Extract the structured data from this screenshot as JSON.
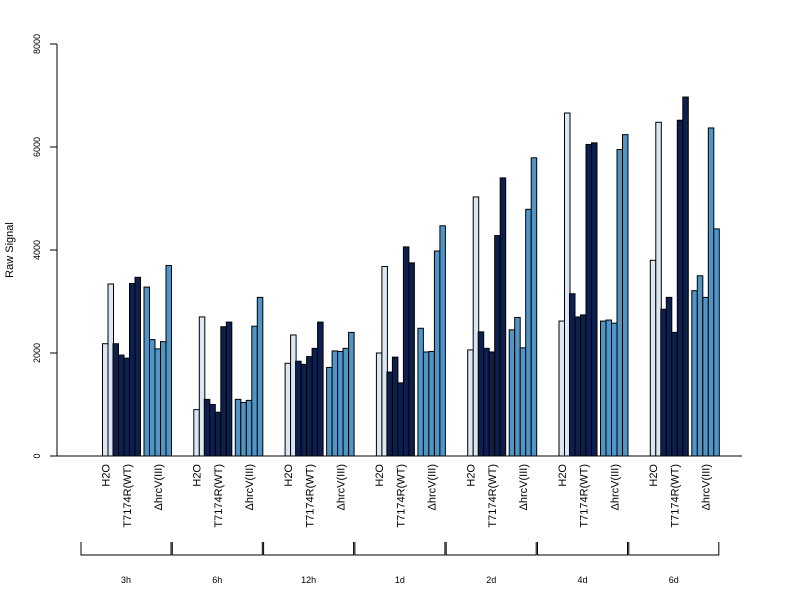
{
  "chart_data": {
    "type": "bar",
    "ylabel": "Raw Signal",
    "ylim": [
      0,
      8000
    ],
    "yticks": [
      0,
      2000,
      4000,
      6000,
      8000
    ],
    "grid": false,
    "legend": "none",
    "treatments": [
      "H2O",
      "T7174R(WT)",
      "ΔhrcV(III)"
    ],
    "treatment_colors": [
      "#dbe7f3",
      "#0c1f4f",
      "#4f95c6"
    ],
    "timepoints": [
      "3h",
      "6h",
      "12h",
      "1d",
      "2d",
      "4d",
      "6d"
    ],
    "groups": [
      {
        "time": "3h",
        "values": [
          [
            0,
            2180,
            3340
          ],
          [
            2180,
            1960,
            1900,
            3350,
            3470
          ],
          [
            3280,
            2260,
            2080,
            2220,
            3700
          ]
        ]
      },
      {
        "time": "6h",
        "values": [
          [
            0,
            900,
            2700
          ],
          [
            1100,
            1000,
            850,
            2510,
            2600
          ],
          [
            1100,
            1040,
            1080,
            2520,
            3080
          ]
        ]
      },
      {
        "time": "12h",
        "values": [
          [
            0,
            1800,
            2350
          ],
          [
            1840,
            1780,
            1930,
            2090,
            2600
          ],
          [
            1720,
            2040,
            2030,
            2090,
            2400
          ]
        ]
      },
      {
        "time": "1d",
        "values": [
          [
            0,
            2000,
            3680
          ],
          [
            1630,
            1920,
            1420,
            4060,
            3750
          ],
          [
            2480,
            2020,
            2030,
            3980,
            4470
          ]
        ]
      },
      {
        "time": "2d",
        "values": [
          [
            0,
            2060,
            5030
          ],
          [
            2410,
            2090,
            2020,
            4280,
            5400
          ],
          [
            2450,
            2690,
            2100,
            4790,
            5790
          ]
        ]
      },
      {
        "time": "4d",
        "values": [
          [
            0,
            2620,
            6660
          ],
          [
            3150,
            2700,
            2740,
            6050,
            6080
          ],
          [
            2620,
            2640,
            2580,
            5950,
            6240
          ]
        ]
      },
      {
        "time": "6d",
        "values": [
          [
            0,
            3800,
            6480
          ],
          [
            2850,
            3080,
            2400,
            6520,
            6970
          ],
          [
            3210,
            3500,
            3080,
            6370,
            4410
          ]
        ]
      }
    ]
  }
}
